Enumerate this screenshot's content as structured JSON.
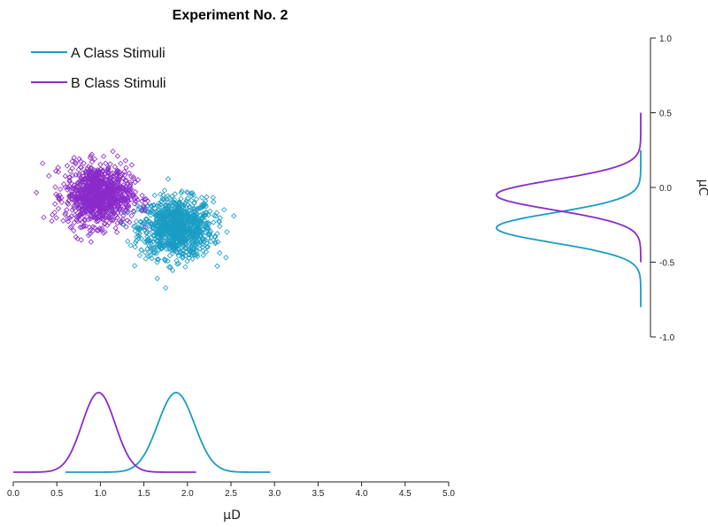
{
  "chart_data": {
    "type": "scatter",
    "title": "Experiment No. 2",
    "xlabel": "μD",
    "ylabel": "μC",
    "x_ticks": [
      "0.0",
      "0.5",
      "1.0",
      "1.5",
      "2.0",
      "2.5",
      "3.0",
      "3.5",
      "4.0",
      "4.5",
      "5.0"
    ],
    "y_ticks": [
      "1.0",
      "0.5",
      "0.0",
      "-0.5",
      "-1.0"
    ],
    "xlim": [
      0,
      5
    ],
    "ylim": [
      -1,
      1
    ],
    "legend_position": "top-left",
    "grid": false,
    "series": [
      {
        "name": "A Class Stimuli",
        "color": "#1a9cc4",
        "marker": "diamond-open",
        "n_points": 1000,
        "mean_x": 1.87,
        "mean_y": -0.27,
        "sd_x": 0.21,
        "sd_y": 0.1,
        "marginal_x_range": [
          0.6,
          2.95
        ],
        "marginal_y_range": [
          -0.8,
          0.25
        ]
      },
      {
        "name": "B Class Stimuli",
        "color": "#8a2bc9",
        "marker": "diamond-open",
        "n_points": 1000,
        "mean_x": 0.98,
        "mean_y": -0.05,
        "sd_x": 0.19,
        "sd_y": 0.1,
        "marginal_x_range": [
          0.0,
          2.1
        ],
        "marginal_y_range": [
          -0.5,
          0.5
        ]
      }
    ]
  }
}
